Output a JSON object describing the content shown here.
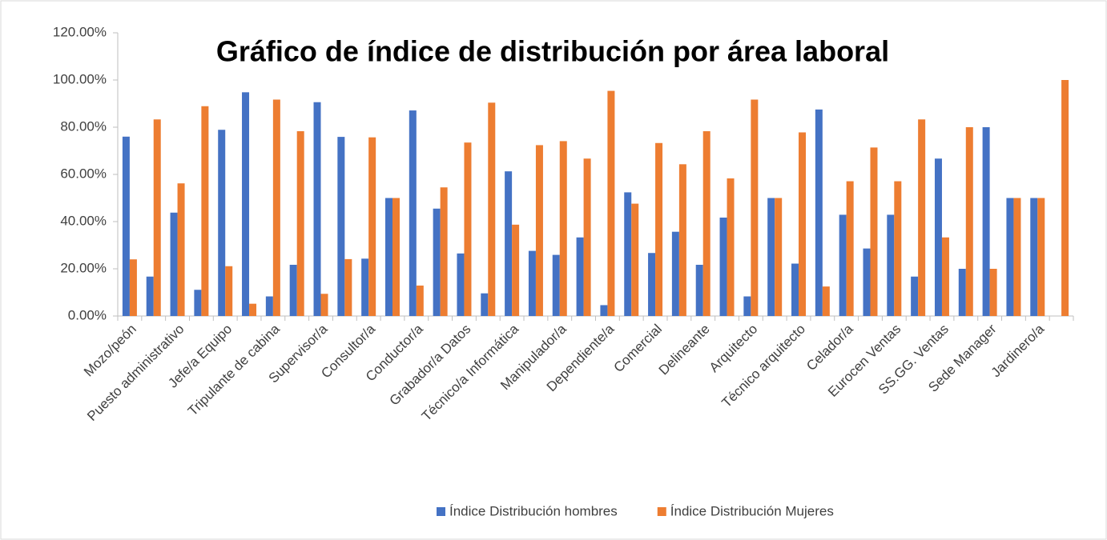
{
  "chart_data": {
    "type": "bar",
    "title": "Gráfico de índice de distribución por área laboral",
    "categories": [
      "Mozo/peón",
      null,
      "Puesto administrativo",
      null,
      "Jefe/a Equipo",
      null,
      "Tripulante de cabina",
      null,
      "Supervisor/a",
      null,
      "Consultor/a",
      null,
      "Conductor/a",
      null,
      "Grabador/a Datos",
      null,
      "Técnico/a Informática",
      null,
      "Manipulador/a",
      null,
      "Dependiente/a",
      null,
      "Comercial",
      null,
      "Delineante",
      null,
      "Arquitecto",
      null,
      "Técnico arquitecto",
      null,
      "Celador/a",
      null,
      "Eurocen Ventas",
      null,
      "SS.GG. Ventas",
      null,
      "Sede Manager",
      null,
      "Jardinero/a",
      null
    ],
    "series": [
      {
        "name": "Índice Distribución hombres",
        "color": "#4472c4",
        "values": [
          76,
          16.7,
          43.8,
          11.1,
          78.9,
          94.8,
          8.3,
          21.7,
          90.6,
          75.9,
          24.3,
          50,
          87.1,
          45.5,
          26.5,
          9.6,
          61.3,
          27.6,
          25.9,
          33.3,
          4.6,
          52.4,
          26.7,
          35.7,
          21.7,
          41.7,
          8.3,
          50,
          22.2,
          87.5,
          42.9,
          28.6,
          42.9,
          16.7,
          66.7,
          20,
          80,
          50,
          50,
          0
        ]
      },
      {
        "name": "Índice Distribución Mujeres",
        "color": "#ed7d31",
        "values": [
          24,
          83.3,
          56.2,
          88.9,
          21.1,
          5.2,
          91.7,
          78.3,
          9.4,
          24.1,
          75.7,
          50,
          12.9,
          54.5,
          73.5,
          90.4,
          38.7,
          72.4,
          74.1,
          66.7,
          95.4,
          47.6,
          73.3,
          64.3,
          78.3,
          58.3,
          91.7,
          50,
          77.8,
          12.5,
          57.1,
          71.4,
          57.1,
          83.3,
          33.3,
          80,
          20,
          50,
          50,
          100
        ]
      }
    ],
    "ylim": [
      0,
      120
    ],
    "yticks": [
      {
        "value": 0,
        "label": "0.00%"
      },
      {
        "value": 20,
        "label": "20.00%"
      },
      {
        "value": 40,
        "label": "40.00%"
      },
      {
        "value": 60,
        "label": "60.00%"
      },
      {
        "value": 80,
        "label": "80.00%"
      },
      {
        "value": 100,
        "label": "100.00%"
      },
      {
        "value": 120,
        "label": "120.00%"
      }
    ],
    "legend": "bottom"
  }
}
